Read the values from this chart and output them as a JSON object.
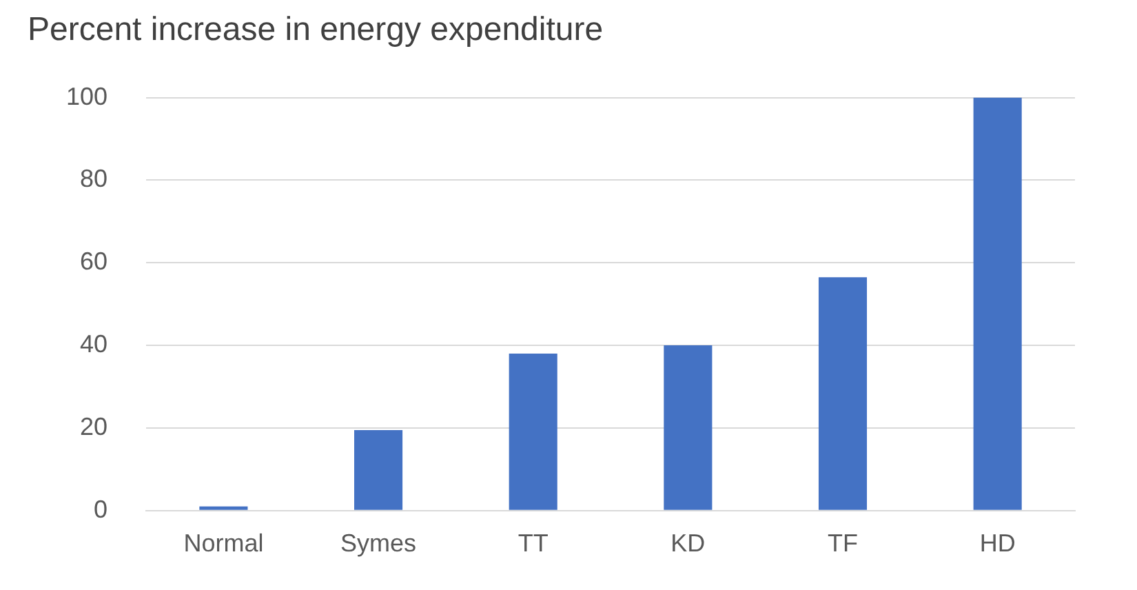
{
  "chart_data": {
    "type": "bar",
    "title": "Percent increase in energy expenditure",
    "categories": [
      "Normal",
      "Symes",
      "TT",
      "KD",
      "TF",
      "HD"
    ],
    "values": [
      1,
      19.5,
      38,
      40,
      56.5,
      100
    ],
    "color": "#4472c4",
    "ylim": [
      0,
      100
    ],
    "yticks": [
      0,
      20,
      40,
      60,
      80,
      100
    ],
    "grid": "y"
  }
}
